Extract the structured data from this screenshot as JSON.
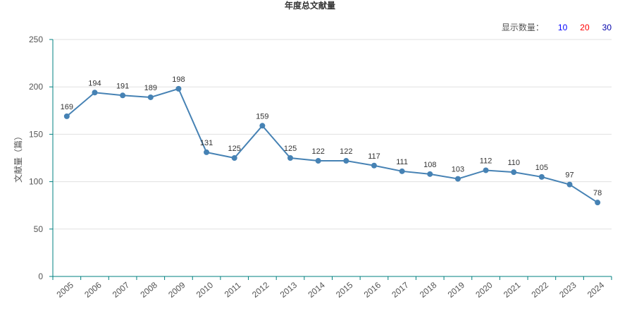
{
  "chart_data": {
    "type": "line",
    "title": "年度总文献量",
    "ylabel": "文献量（篇）",
    "xlabel": "",
    "categories": [
      "2005",
      "2006",
      "2007",
      "2008",
      "2009",
      "2010",
      "2011",
      "2012",
      "2013",
      "2014",
      "2015",
      "2016",
      "2017",
      "2018",
      "2019",
      "2020",
      "2021",
      "2022",
      "2023",
      "2024"
    ],
    "values": [
      169,
      194,
      191,
      189,
      198,
      131,
      125,
      159,
      125,
      122,
      122,
      117,
      111,
      108,
      103,
      112,
      110,
      105,
      97,
      78
    ],
    "ylim": [
      0,
      250
    ],
    "yticks": [
      0,
      50,
      100,
      150,
      200,
      250
    ],
    "grid": true,
    "line_color": "#4682b4",
    "axis_color": "#008080"
  },
  "count_selector": {
    "label": "显示数量：",
    "options": [
      {
        "text": "10",
        "color": "#0000ff"
      },
      {
        "text": "20",
        "color": "#ff0000"
      },
      {
        "text": "30",
        "color": "#0000aa"
      }
    ]
  }
}
